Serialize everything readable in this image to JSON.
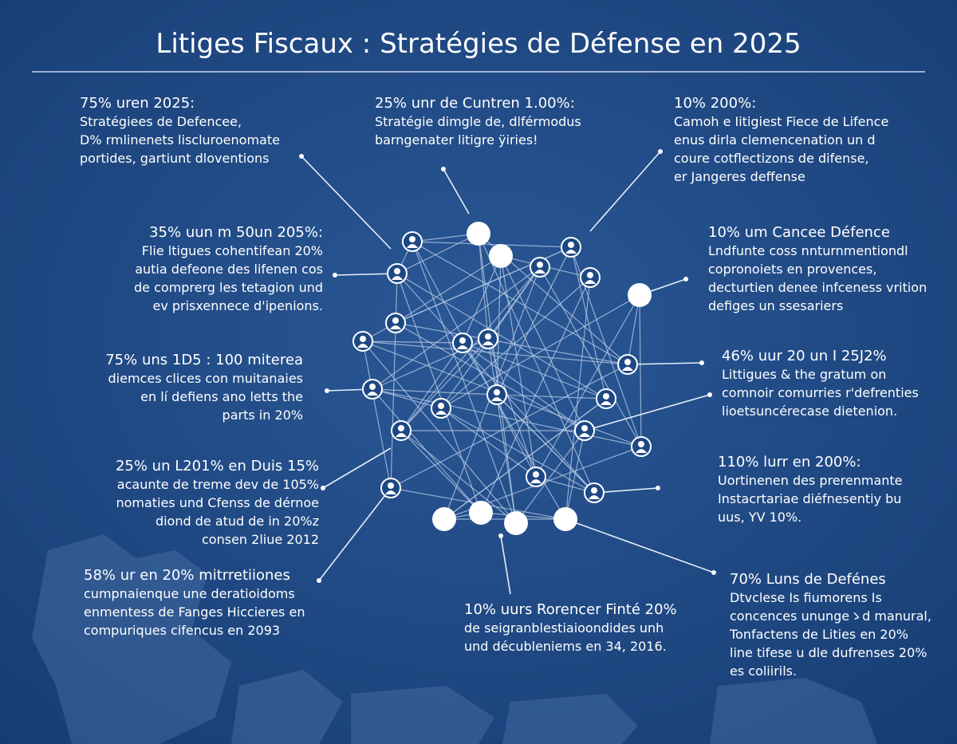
{
  "header": {
    "title": "Litiges Fiscaux : Stratégies de Défense en 2025"
  },
  "callouts": [
    {
      "heading": "75% uren 2025:",
      "lines": [
        "Stratégiees de Defencee,",
        "D% rmlinenets liscluroenomate",
        "portides, gartiunt dloventions"
      ]
    },
    {
      "heading": "25% unr de Cuntren 1.00%:",
      "lines": [
        "Stratégie dimgle de, dlférmodus",
        "barngenater litigre ÿiries!"
      ]
    },
    {
      "heading": "10% 200%:",
      "lines": [
        "Camoh e Iitigiest Fiece de Lifence",
        "enus dirla clemencenation un d",
        "coure cotflectizons de difense,",
        "er Jangeres deffense"
      ]
    },
    {
      "heading": "35% uun m 50un 205%:",
      "lines": [
        "Flie ltigues cohentifean 20%",
        "autia defeone des lifenen cos",
        "de comprerg les tetagion und",
        "ev prisxennece d'ipenions."
      ]
    },
    {
      "heading": "10% um Cancee Défence",
      "lines": [
        "Lndfunte coss nnturnmentiondl",
        "copronoiets en provences,",
        "decturtien denee infceness vrition",
        "defiges un ssesariers"
      ]
    },
    {
      "heading": "75% uns 1D5 : 100 miterea",
      "lines": [
        "diemces clices con muitanaies",
        "en lí defiens ano letts the",
        "parts in 20%"
      ]
    },
    {
      "heading": "46% uur 20 un I 25J2%",
      "lines": [
        "Littigues & the gratum on",
        "comnoir comurries r'defrenties",
        "lioetsuncérecase dietenion."
      ]
    },
    {
      "heading": "25% un L201% en Duis 15%",
      "lines": [
        "acaunte de treme dev de 105%",
        "nomaties und Cfenss de dérnoe",
        "diond de atud de in 20%z",
        "consen 2liue 2012"
      ]
    },
    {
      "heading": "110% lurr en 200%:",
      "lines": [
        "Uortinenen des prerenmante",
        "Instacrtariae diéfnesentiy bu",
        "uus, YV 10%."
      ]
    },
    {
      "heading": "58% ur en 20% mitrretiiones",
      "lines": [
        "cumpnaienque une deratioidoms",
        "enmentess de Fanges Hiccieres en",
        "compuriques cifencus en 2093"
      ]
    },
    {
      "heading": "10% uurs Rorencer Finté 20%",
      "lines": [
        "de seigranblestiaioondides unh",
        "und décubleniems en 34, 2016."
      ]
    },
    {
      "heading": "70% Luns de Defénes",
      "lines": [
        "Dtvclese Is fiumorens Is",
        "concences unungeゝd manural,",
        "Tonfactens de Lities en 20%",
        "line tifese u dle dufrenses 20%",
        "es coliirils."
      ]
    }
  ]
}
